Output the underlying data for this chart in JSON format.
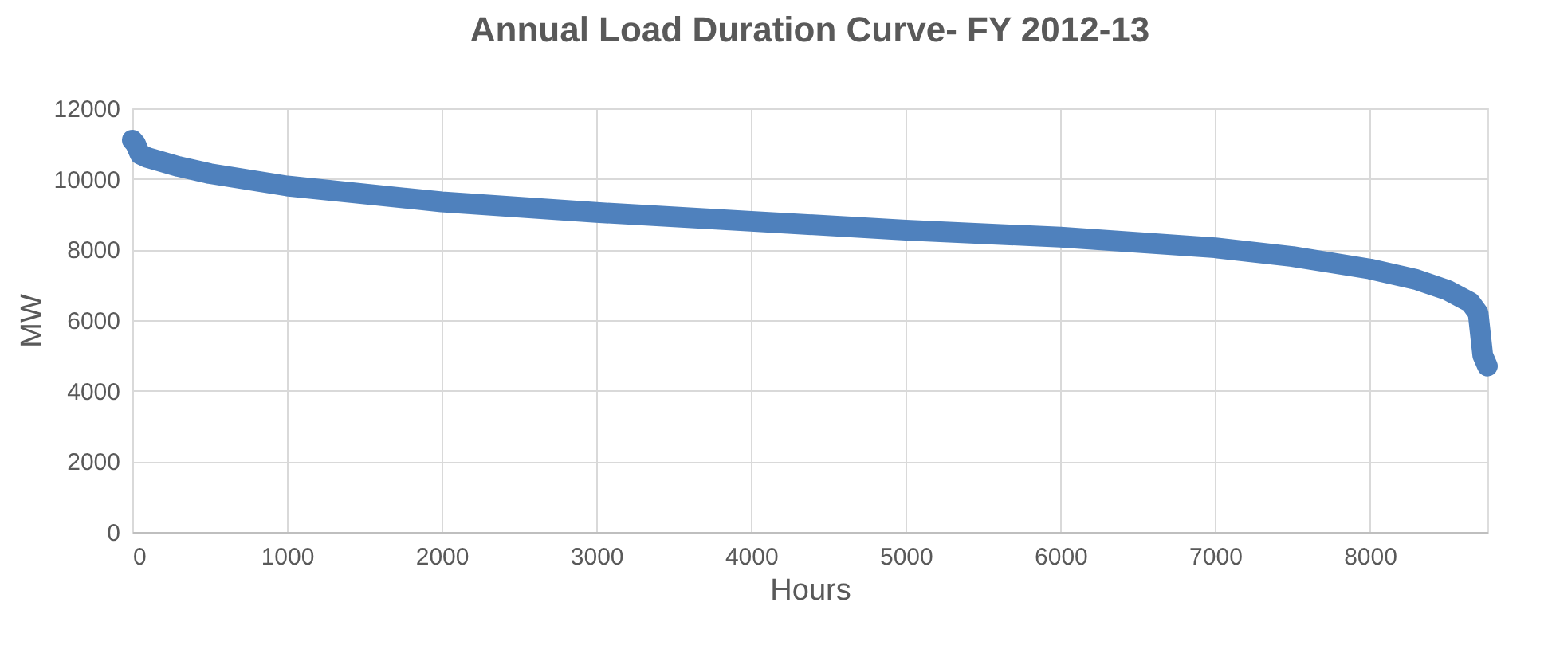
{
  "chart_data": {
    "type": "line",
    "title": "Annual Load Duration Curve- FY 2012-13",
    "xlabel": "Hours",
    "ylabel": "MW",
    "x": [
      0,
      20,
      50,
      100,
      300,
      500,
      1000,
      2000,
      3000,
      4000,
      5000,
      6000,
      7000,
      7500,
      8000,
      8300,
      8500,
      8650,
      8700,
      8715,
      8730,
      8760
    ],
    "series": [
      {
        "color": "#4f81bd",
        "values": [
          11100,
          11000,
          10700,
          10600,
          10350,
          10150,
          9800,
          9350,
          9050,
          8800,
          8550,
          8350,
          8050,
          7800,
          7450,
          7150,
          6850,
          6500,
          6200,
          5600,
          5000,
          4700
        ]
      }
    ],
    "xlim": [
      0,
      8760
    ],
    "xticks": [
      0,
      1000,
      2000,
      3000,
      4000,
      5000,
      6000,
      7000,
      8000
    ],
    "ylim": [
      0,
      12000
    ],
    "yticks": [
      0,
      2000,
      4000,
      6000,
      8000,
      10000,
      12000
    ],
    "grid": true,
    "line_style": "solid"
  }
}
